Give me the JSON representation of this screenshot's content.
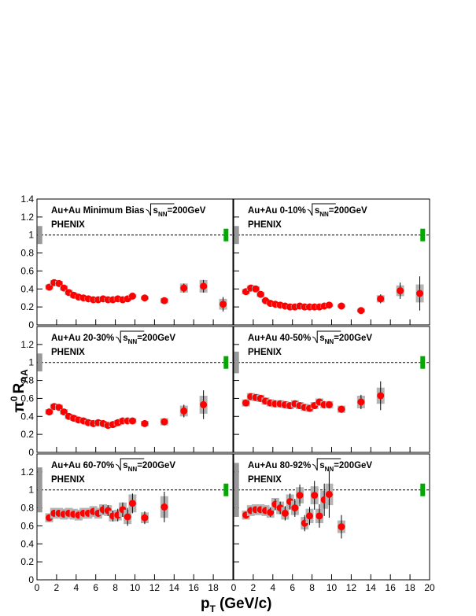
{
  "figure": {
    "ylabel_pi": "π",
    "ylabel_sup": "0",
    "ylabel_r": "R",
    "ylabel_sub": "AA",
    "xlabel_p": "p",
    "xlabel_sub": "T",
    "xlabel_unit": "(GeV/c)"
  },
  "chart_data": [
    {
      "type": "scatter",
      "title": "Au+Au Minimum Bias",
      "energy_var": "s",
      "energy_sub": "NN",
      "energy_value": "=200GeV",
      "experiment": "PHENIX",
      "color": "#ff0000",
      "sys_color": "#b4b4b4",
      "reference": 1,
      "x": [
        1.25,
        1.75,
        2.25,
        2.75,
        3.25,
        3.75,
        4.25,
        4.75,
        5.25,
        5.75,
        6.25,
        6.75,
        7.25,
        7.75,
        8.25,
        8.75,
        9.25,
        9.75,
        11,
        13,
        15,
        17,
        19
      ],
      "values": [
        0.42,
        0.47,
        0.46,
        0.41,
        0.36,
        0.33,
        0.31,
        0.3,
        0.29,
        0.28,
        0.28,
        0.29,
        0.28,
        0.28,
        0.29,
        0.28,
        0.29,
        0.32,
        0.3,
        0.27,
        0.41,
        0.43,
        0.23
      ],
      "errors": [
        0.01,
        0.01,
        0.01,
        0.01,
        0.01,
        0.01,
        0.01,
        0.01,
        0.01,
        0.01,
        0.01,
        0.01,
        0.01,
        0.01,
        0.01,
        0.01,
        0.02,
        0.02,
        0.02,
        0.03,
        0.05,
        0.07,
        0.08
      ],
      "sys": [
        0.03,
        0.03,
        0.03,
        0.03,
        0.03,
        0.03,
        0.02,
        0.02,
        0.02,
        0.02,
        0.02,
        0.02,
        0.02,
        0.02,
        0.02,
        0.02,
        0.02,
        0.02,
        0.02,
        0.03,
        0.05,
        0.07,
        0.06
      ],
      "norm_boxes": [
        {
          "x": 0.3,
          "value": 1,
          "error": 0.1,
          "color": "#999999"
        },
        {
          "x": 19.3,
          "value": 1,
          "error": 0.07,
          "color": "#00aa00"
        }
      ],
      "xlim": [
        0,
        20
      ],
      "ylim": [
        0,
        1.4
      ],
      "xticks": [
        0,
        2,
        4,
        6,
        8,
        10,
        12,
        14,
        16,
        18
      ],
      "yticks": [
        0,
        0.2,
        0.4,
        0.6,
        0.8,
        1,
        1.2,
        1.4
      ],
      "show_ytick_labels": true,
      "show_xtick_labels": false
    },
    {
      "type": "scatter",
      "title": "Au+Au 0-10%",
      "energy_var": "s",
      "energy_sub": "NN",
      "energy_value": "=200GeV",
      "experiment": "PHENIX",
      "color": "#ff0000",
      "sys_color": "#b4b4b4",
      "reference": 1,
      "x": [
        1.25,
        1.75,
        2.25,
        2.75,
        3.25,
        3.75,
        4.25,
        4.75,
        5.25,
        5.75,
        6.25,
        6.75,
        7.25,
        7.75,
        8.25,
        8.75,
        9.25,
        9.75,
        11,
        13,
        15,
        17,
        19
      ],
      "values": [
        0.37,
        0.41,
        0.4,
        0.34,
        0.27,
        0.24,
        0.23,
        0.22,
        0.21,
        0.2,
        0.2,
        0.21,
        0.2,
        0.2,
        0.2,
        0.2,
        0.21,
        0.22,
        0.21,
        0.16,
        0.29,
        0.38,
        0.35
      ],
      "errors": [
        0.01,
        0.01,
        0.01,
        0.01,
        0.01,
        0.01,
        0.01,
        0.01,
        0.01,
        0.01,
        0.01,
        0.01,
        0.01,
        0.01,
        0.01,
        0.01,
        0.01,
        0.01,
        0.02,
        0.02,
        0.05,
        0.09,
        0.19
      ],
      "sys": [
        0.03,
        0.03,
        0.03,
        0.03,
        0.02,
        0.02,
        0.02,
        0.02,
        0.02,
        0.02,
        0.02,
        0.02,
        0.02,
        0.02,
        0.02,
        0.02,
        0.02,
        0.02,
        0.02,
        0.02,
        0.04,
        0.06,
        0.1
      ],
      "norm_boxes": [
        {
          "x": 0.3,
          "value": 1,
          "error": 0.1,
          "color": "#999999"
        },
        {
          "x": 19.3,
          "value": 1,
          "error": 0.07,
          "color": "#00aa00"
        }
      ],
      "xlim": [
        0,
        20
      ],
      "ylim": [
        0,
        1.4
      ],
      "xticks": [
        0,
        2,
        4,
        6,
        8,
        10,
        12,
        14,
        16,
        18,
        20
      ],
      "yticks": [
        0,
        0.2,
        0.4,
        0.6,
        0.8,
        1,
        1.2,
        1.4
      ],
      "show_ytick_labels": false,
      "show_xtick_labels": false
    },
    {
      "type": "scatter",
      "title": "Au+Au 20-30%",
      "energy_var": "s",
      "energy_sub": "NN",
      "energy_value": "=200GeV",
      "experiment": "PHENIX",
      "color": "#ff0000",
      "sys_color": "#b4b4b4",
      "reference": 1,
      "x": [
        1.25,
        1.75,
        2.25,
        2.75,
        3.25,
        3.75,
        4.25,
        4.75,
        5.25,
        5.75,
        6.25,
        6.75,
        7.25,
        7.75,
        8.25,
        8.75,
        9.25,
        9.75,
        11,
        13,
        15,
        17
      ],
      "values": [
        0.45,
        0.51,
        0.5,
        0.45,
        0.4,
        0.38,
        0.36,
        0.35,
        0.33,
        0.32,
        0.33,
        0.32,
        0.3,
        0.31,
        0.33,
        0.35,
        0.35,
        0.35,
        0.32,
        0.34,
        0.46,
        0.53
      ],
      "errors": [
        0.01,
        0.01,
        0.01,
        0.01,
        0.01,
        0.01,
        0.01,
        0.01,
        0.01,
        0.01,
        0.01,
        0.01,
        0.01,
        0.01,
        0.01,
        0.02,
        0.02,
        0.02,
        0.02,
        0.04,
        0.07,
        0.16
      ],
      "sys": [
        0.03,
        0.03,
        0.03,
        0.03,
        0.03,
        0.03,
        0.03,
        0.03,
        0.03,
        0.03,
        0.03,
        0.03,
        0.03,
        0.03,
        0.03,
        0.03,
        0.03,
        0.03,
        0.03,
        0.04,
        0.06,
        0.1
      ],
      "norm_boxes": [
        {
          "x": 0.3,
          "value": 1,
          "error": 0.1,
          "color": "#999999"
        },
        {
          "x": 19.3,
          "value": 1,
          "error": 0.07,
          "color": "#00aa00"
        }
      ],
      "xlim": [
        0,
        20
      ],
      "ylim": [
        0,
        1.4
      ],
      "xticks": [
        0,
        2,
        4,
        6,
        8,
        10,
        12,
        14,
        16,
        18
      ],
      "yticks": [
        0,
        0.2,
        0.4,
        0.6,
        0.8,
        1,
        1.2
      ],
      "show_ytick_labels": true,
      "show_xtick_labels": false
    },
    {
      "type": "scatter",
      "title": "Au+Au 40-50%",
      "energy_var": "s",
      "energy_sub": "NN",
      "energy_value": "=200GeV",
      "experiment": "PHENIX",
      "color": "#ff0000",
      "sys_color": "#b4b4b4",
      "reference": 1,
      "x": [
        1.25,
        1.75,
        2.25,
        2.75,
        3.25,
        3.75,
        4.25,
        4.75,
        5.25,
        5.75,
        6.25,
        6.75,
        7.25,
        7.75,
        8.25,
        8.75,
        9.25,
        9.75,
        11,
        13,
        15
      ],
      "values": [
        0.55,
        0.62,
        0.61,
        0.6,
        0.57,
        0.55,
        0.54,
        0.54,
        0.53,
        0.52,
        0.54,
        0.52,
        0.5,
        0.49,
        0.52,
        0.56,
        0.53,
        0.53,
        0.48,
        0.56,
        0.63
      ],
      "errors": [
        0.01,
        0.01,
        0.01,
        0.01,
        0.01,
        0.01,
        0.01,
        0.01,
        0.01,
        0.01,
        0.01,
        0.02,
        0.02,
        0.02,
        0.03,
        0.03,
        0.04,
        0.04,
        0.04,
        0.08,
        0.16
      ],
      "sys": [
        0.04,
        0.04,
        0.04,
        0.04,
        0.04,
        0.04,
        0.04,
        0.04,
        0.04,
        0.04,
        0.04,
        0.04,
        0.04,
        0.04,
        0.04,
        0.04,
        0.04,
        0.04,
        0.04,
        0.07,
        0.09
      ],
      "norm_boxes": [
        {
          "x": 0.3,
          "value": 1,
          "error": 0.12,
          "color": "#999999"
        },
        {
          "x": 19.3,
          "value": 1,
          "error": 0.07,
          "color": "#00aa00"
        }
      ],
      "xlim": [
        0,
        20
      ],
      "ylim": [
        0,
        1.4
      ],
      "xticks": [
        0,
        2,
        4,
        6,
        8,
        10,
        12,
        14,
        16,
        18,
        20
      ],
      "yticks": [
        0,
        0.2,
        0.4,
        0.6,
        0.8,
        1,
        1.2
      ],
      "show_ytick_labels": false,
      "show_xtick_labels": false
    },
    {
      "type": "scatter",
      "title": "Au+Au 60-70%",
      "energy_var": "s",
      "energy_sub": "NN",
      "energy_value": "=200GeV",
      "experiment": "PHENIX",
      "color": "#ff0000",
      "sys_color": "#b4b4b4",
      "reference": 1,
      "x": [
        1.25,
        1.75,
        2.25,
        2.75,
        3.25,
        3.75,
        4.25,
        4.75,
        5.25,
        5.75,
        6.25,
        6.75,
        7.25,
        7.75,
        8.25,
        8.75,
        9.25,
        9.75,
        11,
        13
      ],
      "values": [
        0.69,
        0.74,
        0.74,
        0.73,
        0.74,
        0.73,
        0.72,
        0.74,
        0.74,
        0.76,
        0.74,
        0.78,
        0.77,
        0.71,
        0.72,
        0.78,
        0.7,
        0.85,
        0.69,
        0.81
      ],
      "errors": [
        0.02,
        0.02,
        0.02,
        0.02,
        0.02,
        0.02,
        0.03,
        0.03,
        0.03,
        0.04,
        0.04,
        0.05,
        0.06,
        0.06,
        0.07,
        0.08,
        0.1,
        0.11,
        0.07,
        0.17
      ],
      "sys": [
        0.05,
        0.06,
        0.06,
        0.06,
        0.06,
        0.06,
        0.06,
        0.06,
        0.06,
        0.06,
        0.06,
        0.06,
        0.06,
        0.06,
        0.06,
        0.08,
        0.08,
        0.1,
        0.06,
        0.12
      ],
      "norm_boxes": [
        {
          "x": 0.3,
          "value": 1,
          "error": 0.25,
          "color": "#999999"
        },
        {
          "x": 19.3,
          "value": 1,
          "error": 0.07,
          "color": "#00aa00"
        }
      ],
      "xlim": [
        0,
        20
      ],
      "ylim": [
        0,
        1.4
      ],
      "xticks": [
        0,
        2,
        4,
        6,
        8,
        10,
        12,
        14,
        16,
        18
      ],
      "yticks": [
        0,
        0.2,
        0.4,
        0.6,
        0.8,
        1,
        1.2
      ],
      "show_ytick_labels": true,
      "show_xtick_labels": true
    },
    {
      "type": "scatter",
      "title": "Au+Au 80-92%",
      "energy_var": "s",
      "energy_sub": "NN",
      "energy_value": "=200GeV",
      "experiment": "PHENIX",
      "color": "#ff0000",
      "sys_color": "#b4b4b4",
      "reference": 1,
      "x": [
        1.25,
        1.75,
        2.25,
        2.75,
        3.25,
        3.75,
        4.25,
        4.75,
        5.25,
        5.75,
        6.25,
        6.75,
        7.25,
        7.75,
        8.25,
        8.75,
        9.25,
        9.75,
        11
      ],
      "values": [
        0.72,
        0.77,
        0.78,
        0.78,
        0.77,
        0.75,
        0.84,
        0.8,
        0.74,
        0.87,
        0.8,
        0.94,
        0.63,
        0.71,
        0.94,
        0.71,
        0.89,
        0.95,
        0.59
      ],
      "errors": [
        0.02,
        0.03,
        0.03,
        0.03,
        0.04,
        0.05,
        0.06,
        0.07,
        0.08,
        0.09,
        0.1,
        0.12,
        0.09,
        0.1,
        0.16,
        0.13,
        0.18,
        0.26,
        0.13
      ],
      "sys": [
        0.05,
        0.06,
        0.06,
        0.06,
        0.06,
        0.06,
        0.07,
        0.07,
        0.07,
        0.08,
        0.08,
        0.09,
        0.07,
        0.08,
        0.1,
        0.08,
        0.1,
        0.12,
        0.07
      ],
      "norm_boxes": [
        {
          "x": 0.3,
          "value": 1,
          "error": 0.3,
          "color": "#999999"
        },
        {
          "x": 19.3,
          "value": 1,
          "error": 0.07,
          "color": "#00aa00"
        }
      ],
      "xlim": [
        0,
        20
      ],
      "ylim": [
        0,
        1.4
      ],
      "xticks": [
        0,
        2,
        4,
        6,
        8,
        10,
        12,
        14,
        16,
        18,
        20
      ],
      "yticks": [
        0,
        0.2,
        0.4,
        0.6,
        0.8,
        1,
        1.2
      ],
      "show_ytick_labels": false,
      "show_xtick_labels": true
    }
  ]
}
